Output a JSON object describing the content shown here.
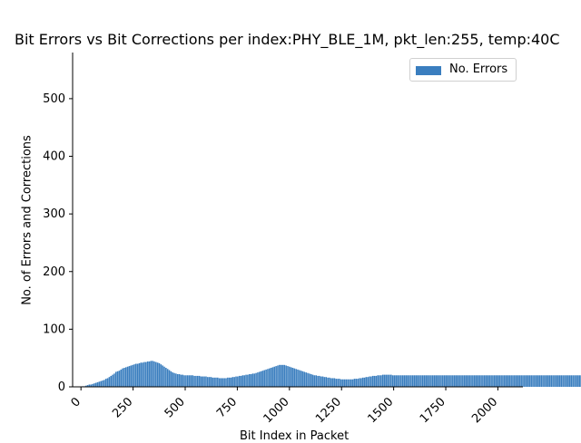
{
  "chart_data": {
    "type": "bar",
    "title": "Bit Errors vs Bit Corrections per index:PHY_BLE_1M, pkt_len:255, temp:40C",
    "xlabel": "Bit Index in Packet",
    "ylabel": "No. of Errors and Corrections",
    "xlim": [
      -40,
      2120
    ],
    "ylim": [
      0,
      580
    ],
    "x_ticks": [
      0,
      250,
      500,
      750,
      1000,
      1250,
      1500,
      1750,
      2000
    ],
    "y_ticks": [
      0,
      100,
      200,
      300,
      400,
      500
    ],
    "legend_position": "top-right",
    "grid": false,
    "series": [
      {
        "name": "No. Errors",
        "color": "#3a7ebf",
        "x_start": 0,
        "x_step": 8,
        "values": [
          0,
          1,
          1,
          2,
          3,
          4,
          4,
          5,
          6,
          7,
          8,
          9,
          10,
          11,
          12,
          14,
          15,
          17,
          19,
          21,
          23,
          26,
          27,
          28,
          30,
          32,
          33,
          34,
          35,
          36,
          37,
          38,
          39,
          40,
          40,
          41,
          42,
          42,
          43,
          43,
          44,
          44,
          45,
          45,
          44,
          43,
          42,
          41,
          39,
          37,
          35,
          33,
          31,
          29,
          27,
          25,
          24,
          23,
          22,
          22,
          21,
          21,
          20,
          20,
          20,
          20,
          20,
          20,
          19,
          19,
          19,
          19,
          18,
          18,
          18,
          18,
          17,
          17,
          17,
          16,
          16,
          16,
          16,
          15,
          15,
          15,
          15,
          15,
          16,
          16,
          16,
          17,
          17,
          18,
          18,
          19,
          19,
          20,
          20,
          21,
          21,
          22,
          22,
          23,
          23,
          24,
          25,
          26,
          27,
          28,
          29,
          30,
          31,
          32,
          33,
          34,
          35,
          36,
          37,
          38,
          38,
          38,
          38,
          37,
          36,
          35,
          34,
          33,
          32,
          31,
          30,
          29,
          28,
          27,
          26,
          25,
          24,
          23,
          22,
          21,
          20,
          20,
          19,
          19,
          18,
          18,
          17,
          17,
          16,
          16,
          15,
          15,
          15,
          14,
          14,
          14,
          13,
          13,
          13,
          13,
          13,
          13,
          13,
          13,
          14,
          14,
          14,
          15,
          15,
          16,
          16,
          17,
          17,
          18,
          18,
          19,
          19,
          19,
          20,
          20,
          20,
          21,
          21,
          21,
          21,
          21,
          21,
          20,
          20,
          20,
          20,
          20,
          20,
          20,
          20,
          20,
          20,
          20,
          20,
          20,
          20,
          20,
          20,
          20,
          20,
          20,
          20,
          20,
          20,
          20,
          20,
          20,
          20,
          20,
          20,
          20,
          20,
          20,
          20,
          20,
          20,
          20,
          20,
          20,
          20,
          20,
          20,
          20,
          20,
          20,
          20,
          20,
          20,
          20,
          20,
          20,
          20,
          20,
          20,
          20,
          20,
          20,
          20,
          20,
          20,
          20,
          20,
          20,
          20,
          20,
          20,
          20,
          20,
          20,
          20,
          20,
          20,
          20,
          20,
          20,
          20,
          20,
          20,
          20,
          20,
          20,
          20,
          20,
          20,
          20,
          20,
          20,
          20,
          20,
          20,
          20,
          20,
          20,
          20,
          20,
          20,
          20,
          20,
          20,
          20,
          20,
          20,
          20,
          20,
          20,
          20,
          20,
          20,
          20,
          20,
          20,
          20,
          20,
          20,
          20,
          20,
          20,
          20
        ]
      }
    ]
  }
}
